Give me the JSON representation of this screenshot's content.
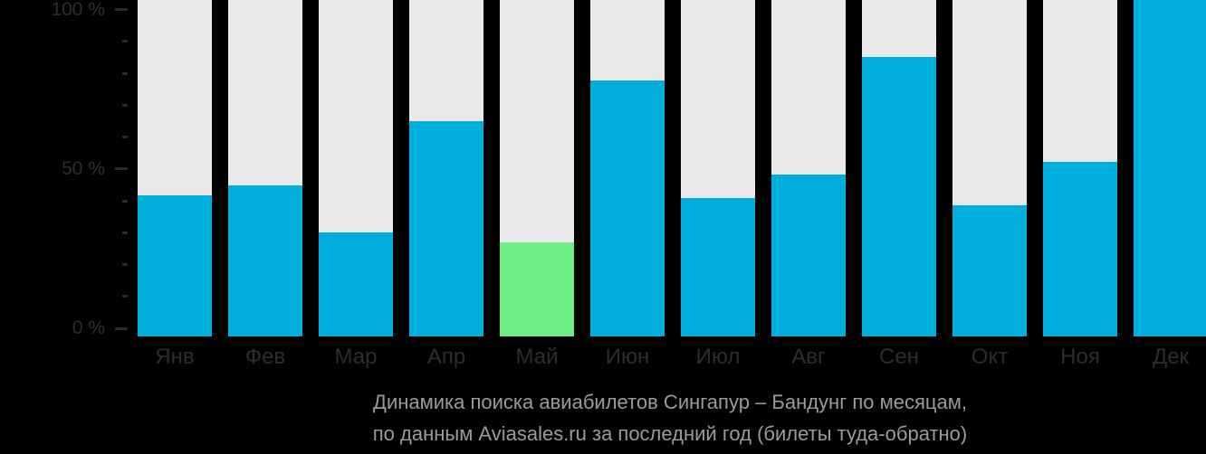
{
  "chart_data": {
    "type": "bar",
    "title": "Динамика поиска авиабилетов Сингапур – Бандунг по месяцам, по данным Aviasales.ru за последний год (билеты туда-обратно)",
    "title_line1": "Динамика поиска авиабилетов Сингапур – Бандунг по месяцам,",
    "title_line2": "по данным Aviasales.ru за последний год (билеты туда-обратно)",
    "categories": [
      "Янв",
      "Фев",
      "Мар",
      "Апр",
      "Май",
      "Июн",
      "Июл",
      "Авг",
      "Сен",
      "Окт",
      "Ноя",
      "Дек"
    ],
    "values": [
      42,
      45,
      31,
      64,
      28,
      76,
      41,
      48,
      83,
      39,
      52,
      100
    ],
    "unit": "%",
    "highlighted_category": "Май",
    "highlight_index": 4,
    "ylabel": "",
    "xlabel": "",
    "ylim": [
      0,
      100
    ],
    "grid": false,
    "legend": false,
    "y_axis": {
      "major_tick_values": [
        0,
        50,
        100
      ],
      "minor_tick_values": [
        10,
        20,
        30,
        40,
        60,
        70,
        80,
        90
      ],
      "tick_labels": {
        "t0": "0 %",
        "t50": "50 %",
        "t100": "100 %"
      }
    },
    "colors": {
      "bar_fill": "#00aedc",
      "bar_highlight": "#6fec86",
      "bar_background": "#e9e9e9",
      "page_background": "#000000",
      "axis_text": "#2d2d2d",
      "tick_mark": "#2d2d2d",
      "caption_text": "#9b9b9b"
    }
  }
}
